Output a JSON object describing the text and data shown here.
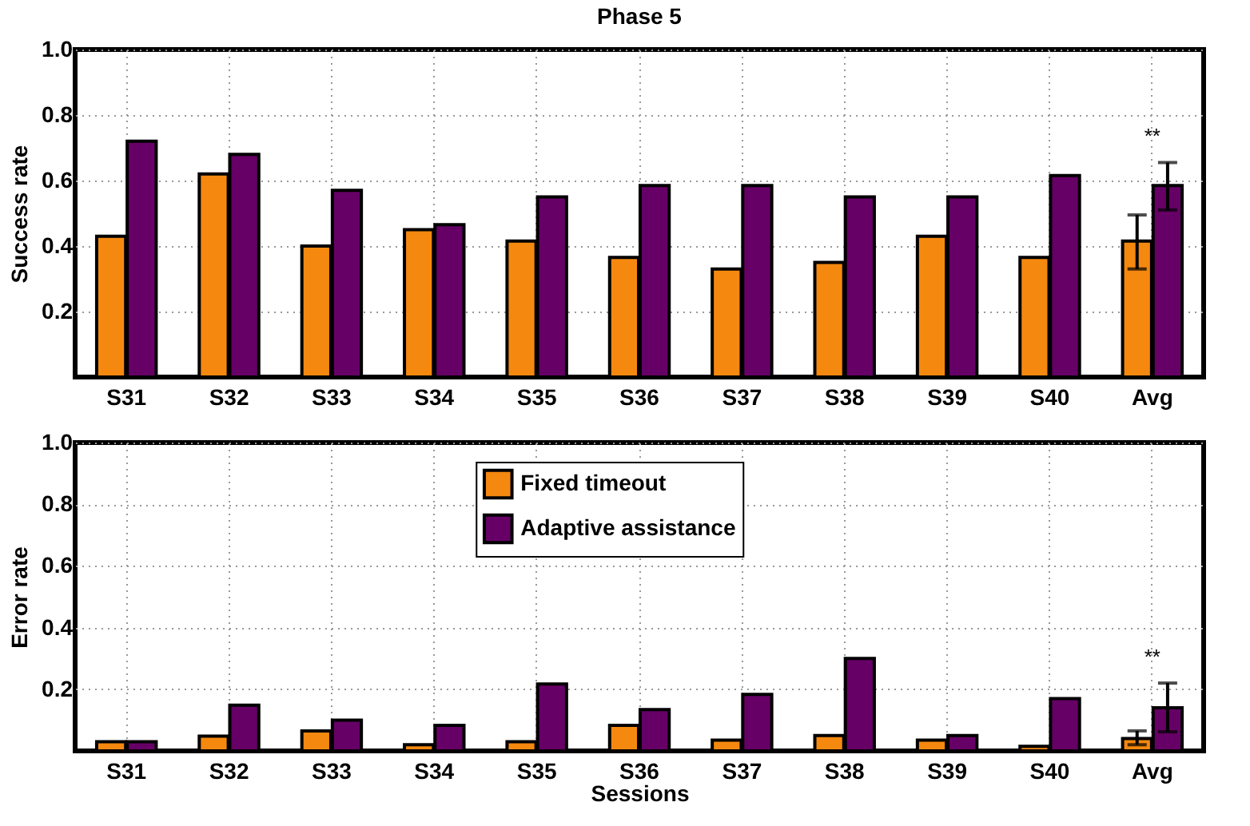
{
  "chart_data": [
    {
      "type": "bar",
      "title": "Phase 5",
      "ylabel": "Success rate",
      "categories": [
        "S31",
        "S32",
        "S33",
        "S34",
        "S35",
        "S36",
        "S37",
        "S38",
        "S39",
        "S40",
        "Avg"
      ],
      "series": [
        {
          "color": "#f5880f",
          "values": [
            0.43,
            0.62,
            0.4,
            0.45,
            0.415,
            0.365,
            0.33,
            0.35,
            0.43,
            0.365,
            0.415
          ],
          "errors": [
            null,
            null,
            null,
            null,
            null,
            null,
            null,
            null,
            null,
            null,
            [
              0.33,
              0.495
            ]
          ]
        },
        {
          "color": "#660066",
          "values": [
            0.72,
            0.68,
            0.57,
            0.465,
            0.55,
            0.585,
            0.585,
            0.55,
            0.55,
            0.615,
            0.585
          ],
          "errors": [
            null,
            null,
            null,
            null,
            null,
            null,
            null,
            null,
            null,
            null,
            [
              0.51,
              0.655
            ]
          ]
        }
      ],
      "ylim": [
        0,
        1
      ],
      "yticks": [
        0.2,
        0.4,
        0.6,
        0.8,
        {
          "value": 1,
          "label": "1.0"
        }
      ],
      "grid": true,
      "annotations": [
        "**"
      ]
    },
    {
      "type": "bar",
      "xlabel": "Sessions",
      "ylabel": "Error rate",
      "categories": [
        "S31",
        "S32",
        "S33",
        "S34",
        "S35",
        "S36",
        "S37",
        "S38",
        "S39",
        "S40",
        "Avg"
      ],
      "series": [
        {
          "name": "Fixed timeout",
          "color": "#f5880f",
          "values": [
            0.03,
            0.048,
            0.065,
            0.02,
            0.03,
            0.083,
            0.035,
            0.05,
            0.035,
            0.015,
            0.04
          ],
          "errors": [
            null,
            null,
            null,
            null,
            null,
            null,
            null,
            null,
            null,
            null,
            [
              0.02,
              0.065
            ]
          ]
        },
        {
          "name": "Adaptive assistance",
          "color": "#660066",
          "values": [
            0.03,
            0.148,
            0.1,
            0.083,
            0.217,
            0.134,
            0.183,
            0.3,
            0.05,
            0.17,
            0.14
          ],
          "errors": [
            null,
            null,
            null,
            null,
            null,
            null,
            null,
            null,
            null,
            null,
            [
              0.062,
              0.22
            ]
          ]
        }
      ],
      "ylim": [
        0,
        1
      ],
      "yticks": [
        0.2,
        0.4,
        0.6,
        0.8,
        {
          "value": 1,
          "label": "1.0"
        }
      ],
      "grid": true,
      "legend": "top",
      "annotations": [
        "**"
      ]
    }
  ]
}
